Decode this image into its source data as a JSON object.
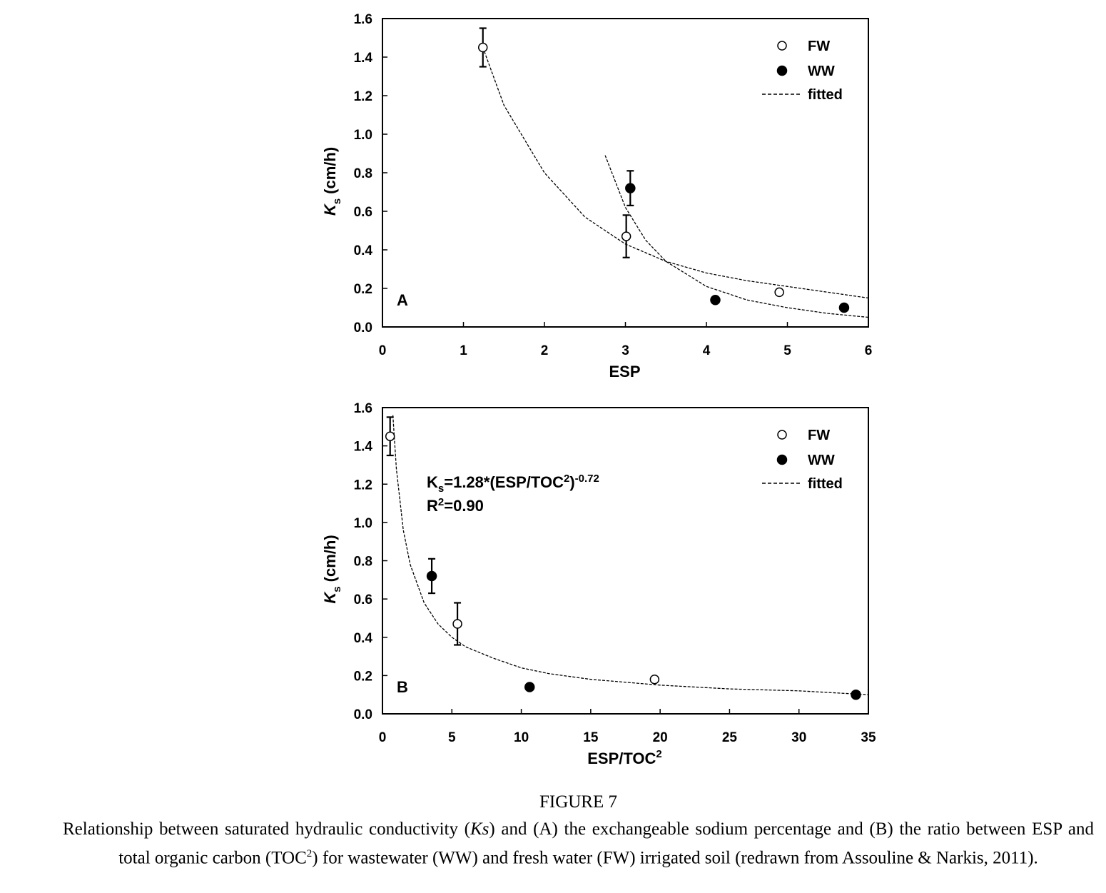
{
  "chart_data": [
    {
      "type": "scatter",
      "panel_label": "A",
      "xlabel": "ESP",
      "ylabel_main": "K",
      "ylabel_sub": "s",
      "ylabel_unit": " (cm/h)",
      "xlim": [
        0,
        6
      ],
      "ylim": [
        0,
        1.6
      ],
      "xticks": [
        "0",
        "1",
        "2",
        "3",
        "4",
        "5",
        "6"
      ],
      "yticks": [
        "0.0",
        "0.2",
        "0.4",
        "0.6",
        "0.8",
        "1.0",
        "1.2",
        "1.4",
        "1.6"
      ],
      "grid": false,
      "legend_position": "top-right",
      "legend": {
        "fw": "FW",
        "ww": "WW",
        "fitted": "fitted"
      },
      "series": [
        {
          "name": "FW",
          "marker": "open-circle",
          "points": [
            {
              "x": 1.24,
              "y": 1.45,
              "err": 0.1
            },
            {
              "x": 3.01,
              "y": 0.47,
              "err": 0.11
            },
            {
              "x": 4.9,
              "y": 0.18
            }
          ]
        },
        {
          "name": "WW",
          "marker": "filled-circle",
          "points": [
            {
              "x": 3.06,
              "y": 0.72,
              "err": 0.09
            },
            {
              "x": 4.11,
              "y": 0.14
            },
            {
              "x": 5.7,
              "y": 0.1
            }
          ]
        }
      ],
      "fitted_curves": [
        {
          "x": [
            1.24,
            1.5,
            2.0,
            2.5,
            3.0,
            3.5,
            4.0,
            4.5,
            5.0,
            5.5,
            6.0
          ],
          "y": [
            1.45,
            1.15,
            0.8,
            0.57,
            0.43,
            0.34,
            0.28,
            0.24,
            0.21,
            0.18,
            0.15
          ]
        },
        {
          "x": [
            2.75,
            3.0,
            3.25,
            3.5,
            4.0,
            4.5,
            5.0,
            5.5,
            6.0
          ],
          "y": [
            0.89,
            0.62,
            0.45,
            0.34,
            0.21,
            0.14,
            0.1,
            0.07,
            0.05
          ]
        }
      ]
    },
    {
      "type": "scatter",
      "panel_label": "B",
      "xlabel_main": "ESP/TOC",
      "xlabel_sup": "2",
      "ylabel_main": "K",
      "ylabel_sub": "s",
      "ylabel_unit": " (cm/h)",
      "xlim": [
        0,
        35
      ],
      "ylim": [
        0,
        1.6
      ],
      "xticks": [
        "0",
        "5",
        "10",
        "15",
        "20",
        "25",
        "30",
        "35"
      ],
      "yticks": [
        "0.0",
        "0.2",
        "0.4",
        "0.6",
        "0.8",
        "1.0",
        "1.2",
        "1.4",
        "1.6"
      ],
      "grid": false,
      "legend_position": "top-right",
      "legend": {
        "fw": "FW",
        "ww": "WW",
        "fitted": "fitted"
      },
      "equation": {
        "k": "K",
        "s": "s",
        "body": "=1.28*(ESP/TOC",
        "sup2": "2",
        "close": ")",
        "exp": "-0.72",
        "r": "R",
        "rsup": "2",
        "rval": "=0.90"
      },
      "series": [
        {
          "name": "FW",
          "marker": "open-circle",
          "points": [
            {
              "x": 0.55,
              "y": 1.45,
              "err": 0.1
            },
            {
              "x": 5.4,
              "y": 0.47,
              "err": 0.11
            },
            {
              "x": 19.6,
              "y": 0.18
            }
          ]
        },
        {
          "name": "WW",
          "marker": "filled-circle",
          "points": [
            {
              "x": 3.55,
              "y": 0.72,
              "err": 0.09
            },
            {
              "x": 10.6,
              "y": 0.14
            },
            {
              "x": 34.1,
              "y": 0.1
            }
          ]
        }
      ],
      "fitted_curves": [
        {
          "x": [
            0.75,
            1.0,
            1.5,
            2.0,
            3.0,
            4.0,
            5.0,
            6.0,
            8.0,
            10.0,
            12.0,
            15.0,
            20.0,
            25.0,
            30.0,
            35.0
          ],
          "y": [
            1.56,
            1.28,
            0.96,
            0.78,
            0.58,
            0.47,
            0.4,
            0.35,
            0.29,
            0.24,
            0.21,
            0.18,
            0.15,
            0.13,
            0.12,
            0.1
          ]
        }
      ]
    }
  ],
  "caption": {
    "title": "FIGURE 7",
    "line1_a": "Relationship between saturated hydraulic conductivity (",
    "line1_ks": "Ks",
    "line1_b": ") and (A) the exchangeable sodium percentage and (B) the ratio between ESP and total organic carbon (TOC",
    "sup": "2",
    "line1_c": ") for wastewater (WW) and fresh water (FW) irrigated soil (redrawn from Assouline & Narkis, 2011)."
  }
}
